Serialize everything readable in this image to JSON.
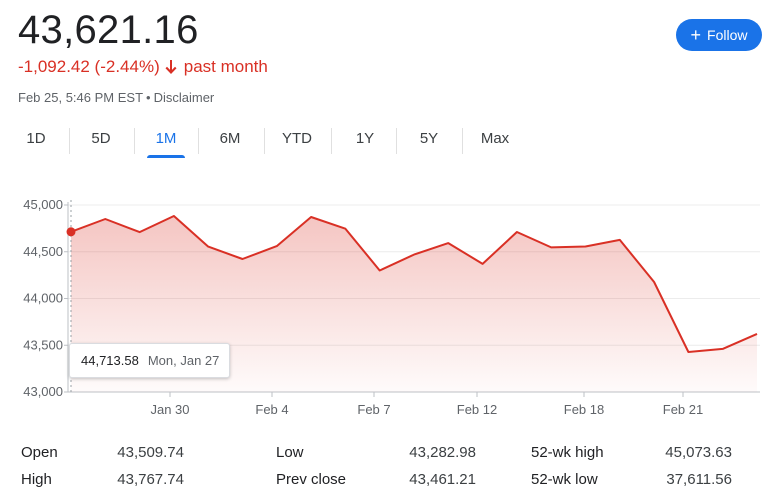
{
  "quote": {
    "price": "43,621.16",
    "change": "-1,092.42 (-2.44%)",
    "change_period": "past month",
    "change_color": "#d93025",
    "timestamp": "Feb 25, 5:46 PM EST",
    "separator": "•",
    "disclaimer": "Disclaimer",
    "arrow_icon": "arrow-down-icon"
  },
  "follow_button": {
    "label": "Follow",
    "icon": "plus-icon",
    "color": "#1a73e8"
  },
  "tabs": [
    {
      "label": "1D"
    },
    {
      "label": "5D"
    },
    {
      "label": "1M",
      "active": true
    },
    {
      "label": "6M"
    },
    {
      "label": "YTD"
    },
    {
      "label": "1Y"
    },
    {
      "label": "5Y"
    },
    {
      "label": "Max"
    }
  ],
  "tooltip": {
    "value": "44,713.58",
    "date": "Mon, Jan 27"
  },
  "chart_data": {
    "type": "area",
    "line_color": "#d93025",
    "grid": true,
    "ylim": [
      43000,
      45000
    ],
    "y_ticks": [
      {
        "value": 45000,
        "label": "45,000"
      },
      {
        "value": 44500,
        "label": "44,500"
      },
      {
        "value": 44000,
        "label": "44,000"
      },
      {
        "value": 43500,
        "label": "43,500"
      },
      {
        "value": 43000,
        "label": "43,000"
      }
    ],
    "x_ticks": [
      "Jan 30",
      "Feb 4",
      "Feb 7",
      "Feb 12",
      "Feb 18",
      "Feb 21"
    ],
    "series": [
      {
        "values": [
          44713.58,
          44850,
          44710,
          44882,
          44555,
          44422,
          44560,
          44872,
          44747,
          44300,
          44470,
          44593,
          44370,
          44711,
          44546,
          44556,
          44627,
          44176,
          43428,
          43461.21,
          43621.16
        ]
      }
    ],
    "highlight_index": 0
  },
  "stats": [
    {
      "label": "Open",
      "value": "43,509.74"
    },
    {
      "label": "High",
      "value": "43,767.74"
    },
    {
      "label": "Low",
      "value": "43,282.98"
    },
    {
      "label": "Prev close",
      "value": "43,461.21"
    },
    {
      "label": "52-wk high",
      "value": "45,073.63"
    },
    {
      "label": "52-wk low",
      "value": "37,611.56"
    }
  ]
}
